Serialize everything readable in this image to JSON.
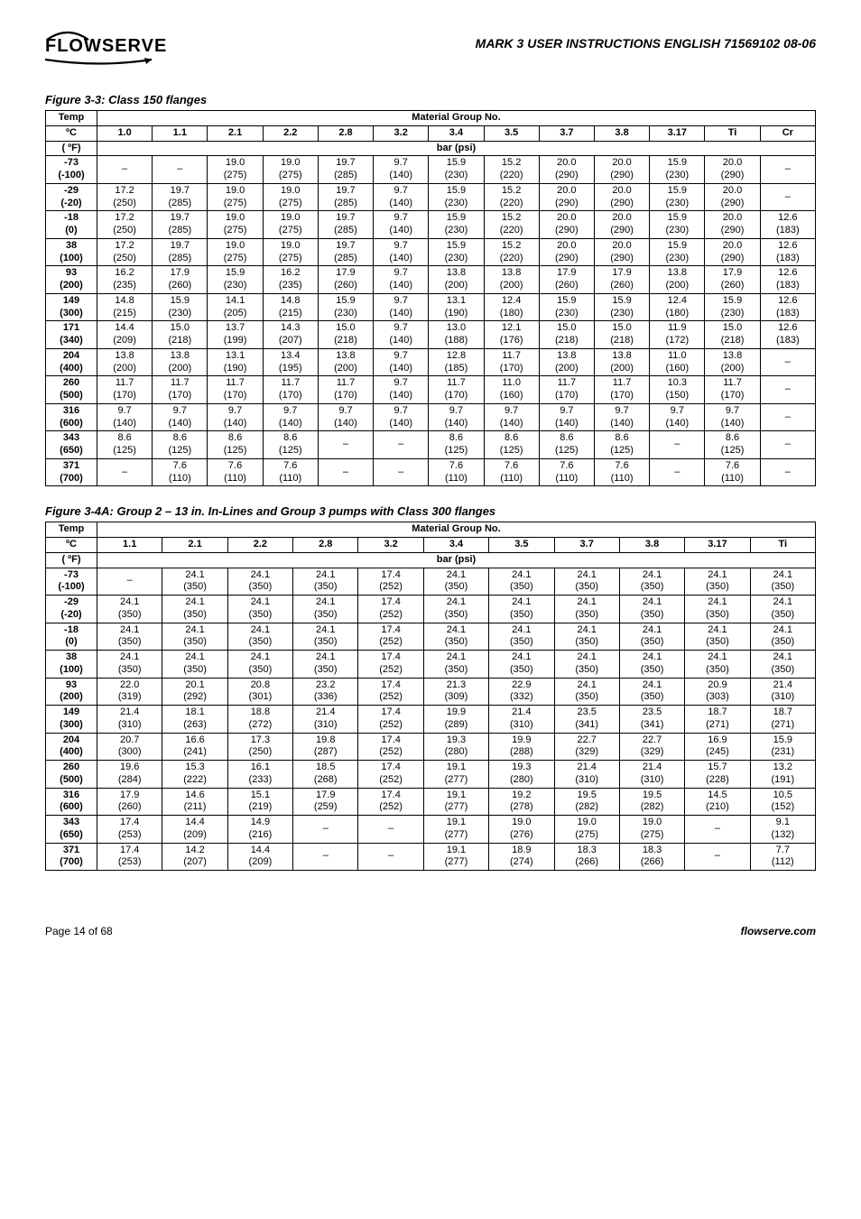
{
  "header": {
    "logo_text": "FLOWSERVE",
    "doc_title": "MARK 3  USER INSTRUCTIONS  ENGLISH  71569102  08-06"
  },
  "footer": {
    "page": "Page 14 of 68",
    "site": "flowserve.com"
  },
  "tables": [
    {
      "id": "t1",
      "caption": "Figure 3-3: Class 150 flanges",
      "group_header": "Material Group No.",
      "units_header": "bar (psi)",
      "temp_header_c": "Temp\nºC",
      "temp_header_f": "( ºF)",
      "group_cols": [
        "1.0",
        "1.1",
        "2.1",
        "2.2",
        "2.8",
        "3.2",
        "3.4",
        "3.5",
        "3.7",
        "3.8",
        "3.17",
        "Ti",
        "Cr"
      ],
      "rows": [
        {
          "t": "-73\n(-100)",
          "v": [
            null,
            null,
            "19.0\n(275)",
            "19.0\n(275)",
            "19.7\n(285)",
            "9.7\n(140)",
            "15.9\n(230)",
            "15.2\n(220)",
            "20.0\n(290)",
            "20.0\n(290)",
            "15.9\n(230)",
            "20.0\n(290)",
            null
          ]
        },
        {
          "t": "-29\n(-20)",
          "v": [
            "17.2\n(250)",
            "19.7\n(285)",
            "19.0\n(275)",
            "19.0\n(275)",
            "19.7\n(285)",
            "9.7\n(140)",
            "15.9\n(230)",
            "15.2\n(220)",
            "20.0\n(290)",
            "20.0\n(290)",
            "15.9\n(230)",
            "20.0\n(290)",
            null
          ]
        },
        {
          "t": "-18\n(0)",
          "v": [
            "17.2\n(250)",
            "19.7\n(285)",
            "19.0\n(275)",
            "19.0\n(275)",
            "19.7\n(285)",
            "9.7\n(140)",
            "15.9\n(230)",
            "15.2\n(220)",
            "20.0\n(290)",
            "20.0\n(290)",
            "15.9\n(230)",
            "20.0\n(290)",
            "12.6\n(183)"
          ]
        },
        {
          "t": "38\n(100)",
          "v": [
            "17.2\n(250)",
            "19.7\n(285)",
            "19.0\n(275)",
            "19.0\n(275)",
            "19.7\n(285)",
            "9.7\n(140)",
            "15.9\n(230)",
            "15.2\n(220)",
            "20.0\n(290)",
            "20.0\n(290)",
            "15.9\n(230)",
            "20.0\n(290)",
            "12.6\n(183)"
          ]
        },
        {
          "t": "93\n(200)",
          "v": [
            "16.2\n(235)",
            "17.9\n(260)",
            "15.9\n(230)",
            "16.2\n(235)",
            "17.9\n(260)",
            "9.7\n(140)",
            "13.8\n(200)",
            "13.8\n(200)",
            "17.9\n(260)",
            "17.9\n(260)",
            "13.8\n(200)",
            "17.9\n(260)",
            "12.6\n(183)"
          ]
        },
        {
          "t": "149\n(300)",
          "v": [
            "14.8\n(215)",
            "15.9\n(230)",
            "14.1\n(205)",
            "14.8\n(215)",
            "15.9\n(230)",
            "9.7\n(140)",
            "13.1\n(190)",
            "12.4\n(180)",
            "15.9\n(230)",
            "15.9\n(230)",
            "12.4\n(180)",
            "15.9\n(230)",
            "12.6\n(183)"
          ]
        },
        {
          "t": "171\n(340)",
          "v": [
            "14.4\n(209)",
            "15.0\n(218)",
            "13.7\n(199)",
            "14.3\n(207)",
            "15.0\n(218)",
            "9.7\n(140)",
            "13.0\n(188)",
            "12.1\n(176)",
            "15.0\n(218)",
            "15.0\n(218)",
            "11.9\n(172)",
            "15.0\n(218)",
            "12.6\n(183)"
          ]
        },
        {
          "t": "204\n(400)",
          "v": [
            "13.8\n(200)",
            "13.8\n(200)",
            "13.1\n(190)",
            "13.4\n(195)",
            "13.8\n(200)",
            "9.7\n(140)",
            "12.8\n(185)",
            "11.7\n(170)",
            "13.8\n(200)",
            "13.8\n(200)",
            "11.0\n(160)",
            "13.8\n(200)",
            null
          ]
        },
        {
          "t": "260\n(500)",
          "v": [
            "11.7\n(170)",
            "11.7\n(170)",
            "11.7\n(170)",
            "11.7\n(170)",
            "11.7\n(170)",
            "9.7\n(140)",
            "11.7\n(170)",
            "11.0\n(160)",
            "11.7\n(170)",
            "11.7\n(170)",
            "10.3\n(150)",
            "11.7\n(170)",
            null
          ]
        },
        {
          "t": "316\n(600)",
          "v": [
            "9.7\n(140)",
            "9.7\n(140)",
            "9.7\n(140)",
            "9.7\n(140)",
            "9.7\n(140)",
            "9.7\n(140)",
            "9.7\n(140)",
            "9.7\n(140)",
            "9.7\n(140)",
            "9.7\n(140)",
            "9.7\n(140)",
            "9.7\n(140)",
            null
          ]
        },
        {
          "t": "343\n(650)",
          "v": [
            "8.6\n(125)",
            "8.6\n(125)",
            "8.6\n(125)",
            "8.6\n(125)",
            null,
            null,
            "8.6\n(125)",
            "8.6\n(125)",
            "8.6\n(125)",
            "8.6\n(125)",
            null,
            "8.6\n(125)",
            null
          ]
        },
        {
          "t": "371\n(700)",
          "v": [
            null,
            "7.6\n(110)",
            "7.6\n(110)",
            "7.6\n(110)",
            null,
            null,
            "7.6\n(110)",
            "7.6\n(110)",
            "7.6\n(110)",
            "7.6\n(110)",
            null,
            "7.6\n(110)",
            null
          ]
        }
      ]
    },
    {
      "id": "t2",
      "caption": "Figure 3-4A: Group 2 – 13 in. In-Lines and Group 3 pumps with Class 300 flanges",
      "group_header": "Material Group No.",
      "units_header": "bar (psi)",
      "temp_header_c": "Temp\nºC",
      "temp_header_f": "( ºF)",
      "group_cols": [
        "1.1",
        "2.1",
        "2.2",
        "2.8",
        "3.2",
        "3.4",
        "3.5",
        "3.7",
        "3.8",
        "3.17",
        "Ti"
      ],
      "rows": [
        {
          "t": "-73\n(-100)",
          "v": [
            null,
            "24.1\n(350)",
            "24.1\n(350)",
            "24.1\n(350)",
            "17.4\n(252)",
            "24.1\n(350)",
            "24.1\n(350)",
            "24.1\n(350)",
            "24.1\n(350)",
            "24.1\n(350)",
            "24.1\n(350)"
          ]
        },
        {
          "t": "-29\n(-20)",
          "v": [
            "24.1\n(350)",
            "24.1\n(350)",
            "24.1\n(350)",
            "24.1\n(350)",
            "17.4\n(252)",
            "24.1\n(350)",
            "24.1\n(350)",
            "24.1\n(350)",
            "24.1\n(350)",
            "24.1\n(350)",
            "24.1\n(350)"
          ]
        },
        {
          "t": "-18\n(0)",
          "v": [
            "24.1\n(350)",
            "24.1\n(350)",
            "24.1\n(350)",
            "24.1\n(350)",
            "17.4\n(252)",
            "24.1\n(350)",
            "24.1\n(350)",
            "24.1\n(350)",
            "24.1\n(350)",
            "24.1\n(350)",
            "24.1\n(350)"
          ]
        },
        {
          "t": "38\n(100)",
          "v": [
            "24.1\n(350)",
            "24.1\n(350)",
            "24.1\n(350)",
            "24.1\n(350)",
            "17.4\n(252)",
            "24.1\n(350)",
            "24.1\n(350)",
            "24.1\n(350)",
            "24.1\n(350)",
            "24.1\n(350)",
            "24.1\n(350)"
          ]
        },
        {
          "t": "93\n(200)",
          "v": [
            "22.0\n(319)",
            "20.1\n(292)",
            "20.8\n(301)",
            "23.2\n(336)",
            "17.4\n(252)",
            "21.3\n(309)",
            "22.9\n(332)",
            "24.1\n(350)",
            "24.1\n(350)",
            "20.9\n(303)",
            "21.4\n(310)"
          ]
        },
        {
          "t": "149\n(300)",
          "v": [
            "21.4\n(310)",
            "18.1\n(263)",
            "18.8\n(272)",
            "21.4\n(310)",
            "17.4\n(252)",
            "19.9\n(289)",
            "21.4\n(310)",
            "23.5\n(341)",
            "23.5\n(341)",
            "18.7\n(271)",
            "18.7\n(271)"
          ]
        },
        {
          "t": "204\n(400)",
          "v": [
            "20.7\n(300)",
            "16.6\n(241)",
            "17.3\n(250)",
            "19.8\n(287)",
            "17.4\n(252)",
            "19.3\n(280)",
            "19.9\n(288)",
            "22.7\n(329)",
            "22.7\n(329)",
            "16.9\n(245)",
            "15.9\n(231)"
          ]
        },
        {
          "t": "260\n(500)",
          "v": [
            "19.6\n(284)",
            "15.3\n(222)",
            "16.1\n(233)",
            "18.5\n(268)",
            "17.4\n(252)",
            "19.1\n(277)",
            "19.3\n(280)",
            "21.4\n(310)",
            "21.4\n(310)",
            "15.7\n(228)",
            "13.2\n(191)"
          ]
        },
        {
          "t": "316\n(600)",
          "v": [
            "17.9\n(260)",
            "14.6\n(211)",
            "15.1\n(219)",
            "17.9\n(259)",
            "17.4\n(252)",
            "19.1\n(277)",
            "19.2\n(278)",
            "19.5\n(282)",
            "19.5\n(282)",
            "14.5\n(210)",
            "10.5\n(152)"
          ]
        },
        {
          "t": "343\n(650)",
          "v": [
            "17.4\n(253)",
            "14.4\n(209)",
            "14.9\n(216)",
            null,
            null,
            "19.1\n(277)",
            "19.0\n(276)",
            "19.0\n(275)",
            "19.0\n(275)",
            null,
            "9.1\n(132)"
          ]
        },
        {
          "t": "371\n(700)",
          "v": [
            "17.4\n(253)",
            "14.2\n(207)",
            "14.4\n(209)",
            null,
            null,
            "19.1\n(277)",
            "18.9\n(274)",
            "18.3\n(266)",
            "18.3\n(266)",
            null,
            "7.7\n(112)"
          ]
        }
      ]
    }
  ]
}
